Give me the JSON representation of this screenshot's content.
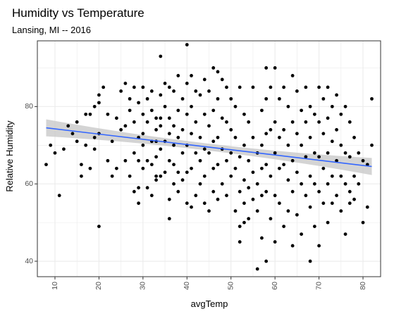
{
  "chart_data": {
    "type": "scatter",
    "title": "Humidity vs Temperature",
    "subtitle": "Lansing, MI -- 2016",
    "xlabel": "avgTemp",
    "ylabel": "Relative Humidity",
    "xlim": [
      6,
      84
    ],
    "ylim": [
      36,
      97
    ],
    "x_ticks": [
      "10",
      "20",
      "30",
      "40",
      "50",
      "60",
      "70",
      "80"
    ],
    "y_ticks": [
      "40",
      "60",
      "80"
    ],
    "grid": true,
    "colors": {
      "points": "#000000",
      "trend": "#3366FF",
      "band": "#cccccc",
      "grid": "#ebebeb",
      "panel_border": "#333333"
    },
    "trend": {
      "x": [
        8,
        82
      ],
      "y": [
        74.5,
        64.5
      ],
      "band_halfwidth_ends": 2.2,
      "band_halfwidth_mid": 0.9
    },
    "points": [
      [
        8,
        65
      ],
      [
        9,
        70
      ],
      [
        10,
        68
      ],
      [
        11,
        57
      ],
      [
        12,
        69
      ],
      [
        13,
        75
      ],
      [
        14,
        73
      ],
      [
        15,
        71
      ],
      [
        15,
        76
      ],
      [
        16,
        65
      ],
      [
        16,
        62
      ],
      [
        17,
        78
      ],
      [
        17,
        70
      ],
      [
        18,
        78
      ],
      [
        18,
        64
      ],
      [
        19,
        72
      ],
      [
        19,
        80
      ],
      [
        19,
        69
      ],
      [
        20,
        83
      ],
      [
        20,
        81
      ],
      [
        20,
        73
      ],
      [
        20,
        49
      ],
      [
        21,
        85
      ],
      [
        22,
        78
      ],
      [
        22,
        66
      ],
      [
        23,
        71
      ],
      [
        23,
        62
      ],
      [
        24,
        64
      ],
      [
        24,
        77
      ],
      [
        25,
        84
      ],
      [
        25,
        74
      ],
      [
        26,
        86
      ],
      [
        26,
        75
      ],
      [
        26,
        66
      ],
      [
        27,
        82
      ],
      [
        27,
        79
      ],
      [
        27,
        62
      ],
      [
        28,
        85
      ],
      [
        28,
        76
      ],
      [
        28,
        68
      ],
      [
        28,
        58
      ],
      [
        29,
        81
      ],
      [
        29,
        72
      ],
      [
        29,
        66
      ],
      [
        29,
        59
      ],
      [
        29,
        55
      ],
      [
        30,
        85
      ],
      [
        30,
        78
      ],
      [
        30,
        73
      ],
      [
        30,
        70
      ],
      [
        30,
        64
      ],
      [
        31,
        82
      ],
      [
        31,
        76
      ],
      [
        31,
        66
      ],
      [
        31,
        59
      ],
      [
        32,
        84
      ],
      [
        32,
        79
      ],
      [
        32,
        71
      ],
      [
        32,
        65
      ],
      [
        32,
        57
      ],
      [
        33,
        77
      ],
      [
        33,
        74
      ],
      [
        33,
        71
      ],
      [
        33,
        67
      ],
      [
        33,
        62
      ],
      [
        33,
        61
      ],
      [
        34,
        93
      ],
      [
        34,
        83
      ],
      [
        34,
        77
      ],
      [
        34,
        75
      ],
      [
        34,
        69
      ],
      [
        34,
        62
      ],
      [
        35,
        86
      ],
      [
        35,
        80
      ],
      [
        35,
        71
      ],
      [
        35,
        63
      ],
      [
        36,
        85
      ],
      [
        36,
        77
      ],
      [
        36,
        73
      ],
      [
        36,
        66
      ],
      [
        36,
        56
      ],
      [
        36,
        51
      ],
      [
        37,
        84
      ],
      [
        37,
        75
      ],
      [
        37,
        70
      ],
      [
        37,
        65
      ],
      [
        37,
        60
      ],
      [
        38,
        88
      ],
      [
        38,
        79
      ],
      [
        38,
        72
      ],
      [
        38,
        63
      ],
      [
        38,
        58
      ],
      [
        39,
        82
      ],
      [
        39,
        74
      ],
      [
        39,
        68
      ],
      [
        39,
        61
      ],
      [
        40,
        96
      ],
      [
        40,
        86
      ],
      [
        40,
        78
      ],
      [
        40,
        70
      ],
      [
        40,
        63
      ],
      [
        40,
        55
      ],
      [
        41,
        88
      ],
      [
        41,
        80
      ],
      [
        41,
        73
      ],
      [
        41,
        64
      ],
      [
        41,
        54
      ],
      [
        42,
        84
      ],
      [
        42,
        76
      ],
      [
        42,
        68
      ],
      [
        42,
        57
      ],
      [
        43,
        83
      ],
      [
        43,
        72
      ],
      [
        43,
        66
      ],
      [
        43,
        60
      ],
      [
        44,
        87
      ],
      [
        44,
        78
      ],
      [
        44,
        69
      ],
      [
        44,
        62
      ],
      [
        44,
        55
      ],
      [
        45,
        84
      ],
      [
        45,
        75
      ],
      [
        45,
        68
      ],
      [
        45,
        53
      ],
      [
        46,
        90
      ],
      [
        46,
        79
      ],
      [
        46,
        71
      ],
      [
        46,
        64
      ],
      [
        46,
        58
      ],
      [
        47,
        89
      ],
      [
        47,
        82
      ],
      [
        47,
        72
      ],
      [
        47,
        65
      ],
      [
        47,
        56
      ],
      [
        48,
        87
      ],
      [
        48,
        77
      ],
      [
        48,
        69
      ],
      [
        48,
        60
      ],
      [
        49,
        85
      ],
      [
        49,
        76
      ],
      [
        49,
        66
      ],
      [
        49,
        57
      ],
      [
        50,
        82
      ],
      [
        50,
        74
      ],
      [
        50,
        68
      ],
      [
        50,
        62
      ],
      [
        51,
        80
      ],
      [
        51,
        72
      ],
      [
        51,
        64
      ],
      [
        51,
        53
      ],
      [
        52,
        85
      ],
      [
        52,
        67
      ],
      [
        52,
        58
      ],
      [
        52,
        49
      ],
      [
        52,
        45
      ],
      [
        53,
        78
      ],
      [
        53,
        70
      ],
      [
        53,
        61
      ],
      [
        53,
        55
      ],
      [
        53,
        50
      ],
      [
        54,
        76
      ],
      [
        54,
        66
      ],
      [
        54,
        59
      ],
      [
        54,
        51
      ],
      [
        55,
        85
      ],
      [
        55,
        72
      ],
      [
        55,
        63
      ],
      [
        55,
        56
      ],
      [
        56,
        68
      ],
      [
        56,
        60
      ],
      [
        56,
        53
      ],
      [
        56,
        38
      ],
      [
        57,
        79
      ],
      [
        57,
        70
      ],
      [
        57,
        64
      ],
      [
        57,
        57
      ],
      [
        57,
        46
      ],
      [
        58,
        90
      ],
      [
        58,
        82
      ],
      [
        58,
        73
      ],
      [
        58,
        65
      ],
      [
        58,
        58
      ],
      [
        58,
        40
      ],
      [
        59,
        85
      ],
      [
        59,
        74
      ],
      [
        59,
        62
      ],
      [
        59,
        51
      ],
      [
        60,
        90
      ],
      [
        60,
        76
      ],
      [
        60,
        68
      ],
      [
        60,
        57
      ],
      [
        60,
        45
      ],
      [
        61,
        82
      ],
      [
        61,
        72
      ],
      [
        61,
        64
      ],
      [
        61,
        55
      ],
      [
        62,
        85
      ],
      [
        62,
        74
      ],
      [
        62,
        65
      ],
      [
        62,
        49
      ],
      [
        63,
        80
      ],
      [
        63,
        70
      ],
      [
        63,
        61
      ],
      [
        63,
        53
      ],
      [
        64,
        88
      ],
      [
        64,
        76
      ],
      [
        64,
        66
      ],
      [
        64,
        58
      ],
      [
        64,
        44
      ],
      [
        65,
        84
      ],
      [
        65,
        73
      ],
      [
        65,
        63
      ],
      [
        65,
        52
      ],
      [
        66,
        79
      ],
      [
        66,
        70
      ],
      [
        66,
        60
      ],
      [
        66,
        47
      ],
      [
        67,
        85
      ],
      [
        67,
        76
      ],
      [
        67,
        67
      ],
      [
        67,
        57
      ],
      [
        68,
        80
      ],
      [
        68,
        72
      ],
      [
        68,
        62
      ],
      [
        68,
        54
      ],
      [
        68,
        40
      ],
      [
        69,
        78
      ],
      [
        69,
        68
      ],
      [
        69,
        60
      ],
      [
        69,
        49
      ],
      [
        70,
        85
      ],
      [
        70,
        76
      ],
      [
        70,
        67
      ],
      [
        70,
        58
      ],
      [
        70,
        44
      ],
      [
        71,
        82
      ],
      [
        71,
        73
      ],
      [
        71,
        64
      ],
      [
        71,
        55
      ],
      [
        72,
        85
      ],
      [
        72,
        77
      ],
      [
        72,
        68
      ],
      [
        72,
        60
      ],
      [
        72,
        50
      ],
      [
        73,
        80
      ],
      [
        73,
        71
      ],
      [
        73,
        62
      ],
      [
        73,
        55
      ],
      [
        74,
        83
      ],
      [
        74,
        74
      ],
      [
        74,
        66
      ],
      [
        74,
        57
      ],
      [
        75,
        78
      ],
      [
        75,
        70
      ],
      [
        75,
        62
      ],
      [
        75,
        53
      ],
      [
        76,
        80
      ],
      [
        76,
        68
      ],
      [
        76,
        60
      ],
      [
        76,
        47
      ],
      [
        77,
        76
      ],
      [
        77,
        67
      ],
      [
        77,
        58
      ],
      [
        77,
        55
      ],
      [
        78,
        72
      ],
      [
        78,
        62
      ],
      [
        78,
        56
      ],
      [
        79,
        68
      ],
      [
        79,
        60
      ],
      [
        80,
        66
      ],
      [
        80,
        50
      ],
      [
        81,
        65
      ],
      [
        81,
        54
      ],
      [
        82,
        82
      ],
      [
        82,
        70
      ]
    ]
  }
}
